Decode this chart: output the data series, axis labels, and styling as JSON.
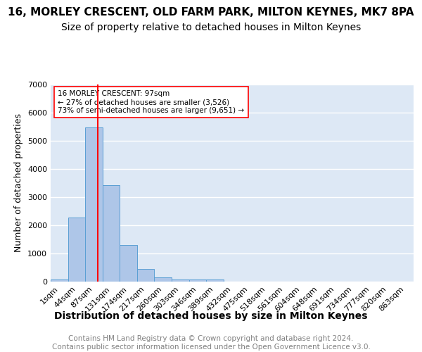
{
  "title1": "16, MORLEY CRESCENT, OLD FARM PARK, MILTON KEYNES, MK7 8PA",
  "title2": "Size of property relative to detached houses in Milton Keynes",
  "xlabel": "Distribution of detached houses by size in Milton Keynes",
  "ylabel": "Number of detached properties",
  "footnote1": "Contains HM Land Registry data © Crown copyright and database right 2024.",
  "footnote2": "Contains public sector information licensed under the Open Government Licence v3.0.",
  "bin_labels": [
    "1sqm",
    "44sqm",
    "87sqm",
    "131sqm",
    "174sqm",
    "217sqm",
    "260sqm",
    "303sqm",
    "346sqm",
    "389sqm",
    "432sqm",
    "475sqm",
    "518sqm",
    "561sqm",
    "604sqm",
    "648sqm",
    "691sqm",
    "734sqm",
    "777sqm",
    "820sqm",
    "863sqm"
  ],
  "bar_heights": [
    75,
    2270,
    5480,
    3420,
    1290,
    460,
    155,
    75,
    70,
    65,
    0,
    0,
    0,
    0,
    0,
    0,
    0,
    0,
    0,
    0,
    0
  ],
  "bar_color": "#aec6e8",
  "bar_edge_color": "#5a9fd4",
  "vline_x": 2.22,
  "vline_color": "red",
  "annotation_text": "16 MORLEY CRESCENT: 97sqm\n← 27% of detached houses are smaller (3,526)\n73% of semi-detached houses are larger (9,651) →",
  "annotation_box_color": "white",
  "annotation_box_edge": "red",
  "ylim": [
    0,
    7000
  ],
  "yticks": [
    0,
    1000,
    2000,
    3000,
    4000,
    5000,
    6000,
    7000
  ],
  "bg_color": "#dde8f5",
  "grid_color": "white",
  "title1_fontsize": 11,
  "title2_fontsize": 10,
  "xlabel_fontsize": 10,
  "ylabel_fontsize": 9,
  "tick_fontsize": 8,
  "footnote_fontsize": 7.5
}
